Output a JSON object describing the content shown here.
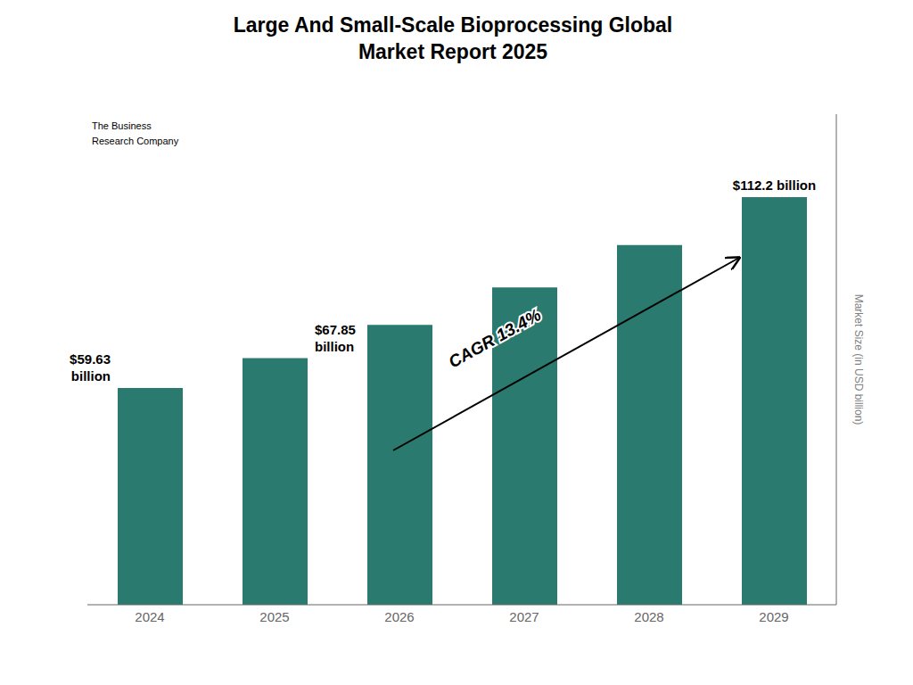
{
  "chart_data": {
    "type": "bar",
    "title": "Large And Small-Scale Bioprocessing Global\nMarket Report 2025",
    "categories": [
      "2024",
      "2025",
      "2026",
      "2027",
      "2028",
      "2029"
    ],
    "values": [
      59.63,
      67.85,
      77.0,
      87.3,
      99.0,
      112.2
    ],
    "value_labels": [
      "$59.63\nbillion",
      "$67.85\nbillion",
      null,
      null,
      null,
      "$112.2 billion"
    ],
    "color": "#2a7a6f",
    "ylabel": "Market Size (in USD billion)",
    "ylim": [
      0,
      135
    ],
    "tick_labels": "x",
    "annotations": [
      "CAGR 13.4%",
      "The Business\nResearch Company"
    ]
  }
}
